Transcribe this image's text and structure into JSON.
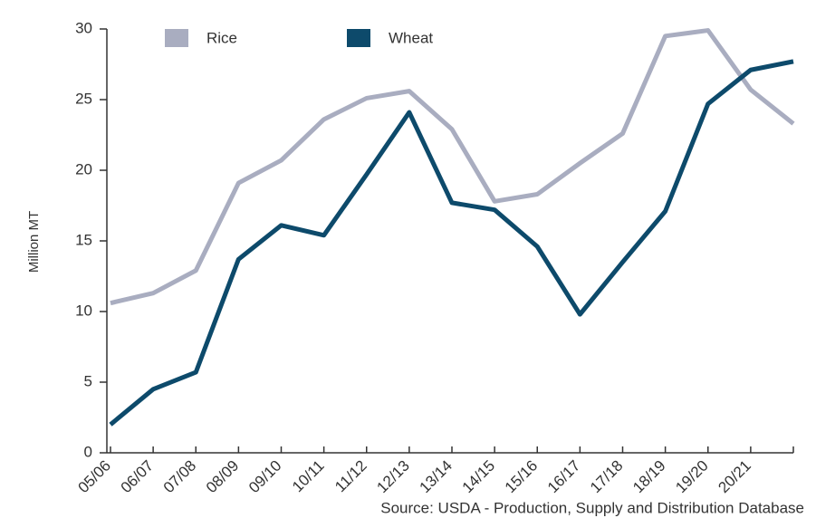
{
  "chart_data": {
    "type": "line",
    "y_label": "Million MT",
    "source": "Source: USDA - Production, Supply and Distribution Database",
    "categories": [
      "05/06",
      "06/07",
      "07/08",
      "08/09",
      "09/10",
      "10/11",
      "11/12",
      "12/13",
      "13/14",
      "14/15",
      "15/16",
      "16/17",
      "17/18",
      "18/19",
      "19/20",
      "20/21",
      null
    ],
    "series": [
      {
        "name": "Rice",
        "color": "#a9adc0",
        "values": [
          10.6,
          11.3,
          12.9,
          19.1,
          20.7,
          23.6,
          25.1,
          25.6,
          22.9,
          17.8,
          18.3,
          20.5,
          22.6,
          29.5,
          29.9,
          25.7,
          23.3
        ]
      },
      {
        "name": "Wheat",
        "color": "#0d4a6b",
        "values": [
          2.0,
          4.5,
          5.7,
          13.7,
          16.1,
          15.4,
          19.7,
          24.1,
          17.7,
          17.2,
          14.6,
          9.8,
          13.5,
          17.1,
          24.7,
          27.1,
          27.7
        ]
      }
    ],
    "ylim": [
      0,
      30
    ],
    "yticks": [
      0,
      5,
      10,
      15,
      20,
      25,
      30
    ]
  }
}
